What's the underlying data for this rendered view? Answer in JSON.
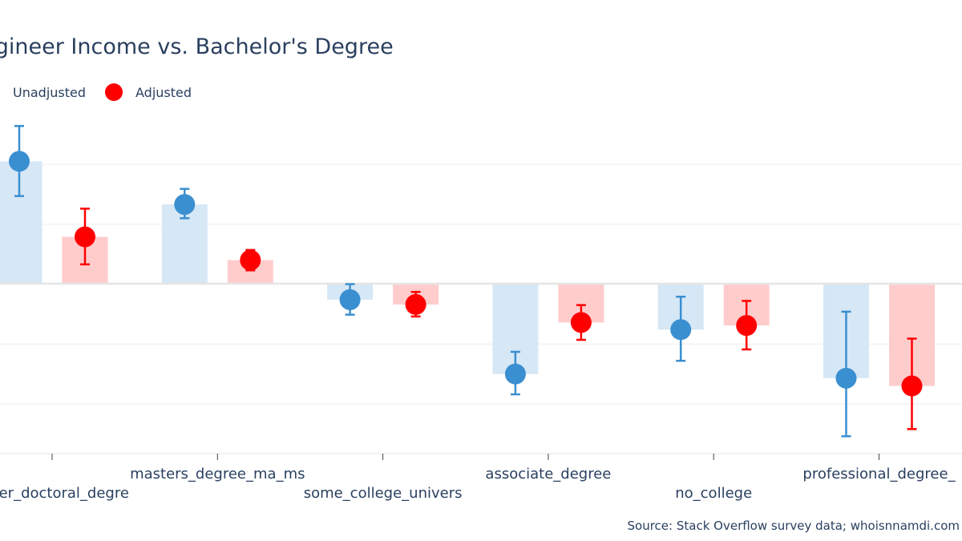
{
  "chart_data": {
    "type": "bar",
    "title": "Software Engineer Income vs. Bachelor's Degree",
    "source": "Source: Stack Overflow survey data; whoisnnamdi.com",
    "categories": [
      "other_doctoral_degree",
      "masters_degree_ma_ms",
      "some_college_university",
      "associate_degree",
      "no_college",
      "professional_degree_jd_md"
    ],
    "tick_labels": [
      "other_doctoral_degre",
      "masters_degree_ma_ms",
      "some_college_univers",
      "associate_degree",
      "no_college",
      "professional_degree_"
    ],
    "series": [
      {
        "name": "Unadjusted",
        "color": "#3a8fd0",
        "bar_color": "#d6e7f6",
        "values": [
          0.205,
          0.133,
          -0.026,
          -0.15,
          -0.076,
          -0.157
        ],
        "error_low": [
          0.147,
          0.11,
          -0.051,
          -0.184,
          -0.128,
          -0.254
        ],
        "error_high": [
          0.264,
          0.159,
          0.0,
          -0.113,
          -0.021,
          -0.046
        ]
      },
      {
        "name": "Adjusted",
        "color": "#ff0000",
        "bar_color": "#ffcccc",
        "values": [
          0.079,
          0.04,
          -0.034,
          -0.064,
          -0.069,
          -0.17
        ],
        "error_low": [
          0.033,
          0.023,
          -0.054,
          -0.093,
          -0.109,
          -0.242
        ],
        "error_high": [
          0.126,
          0.057,
          -0.013,
          -0.035,
          -0.028,
          -0.091
        ]
      }
    ],
    "ylim": [
      -0.283,
      0.283
    ],
    "gridlines": [
      -0.2,
      -0.1,
      0.1,
      0.2
    ],
    "legend_position": "top-left"
  }
}
